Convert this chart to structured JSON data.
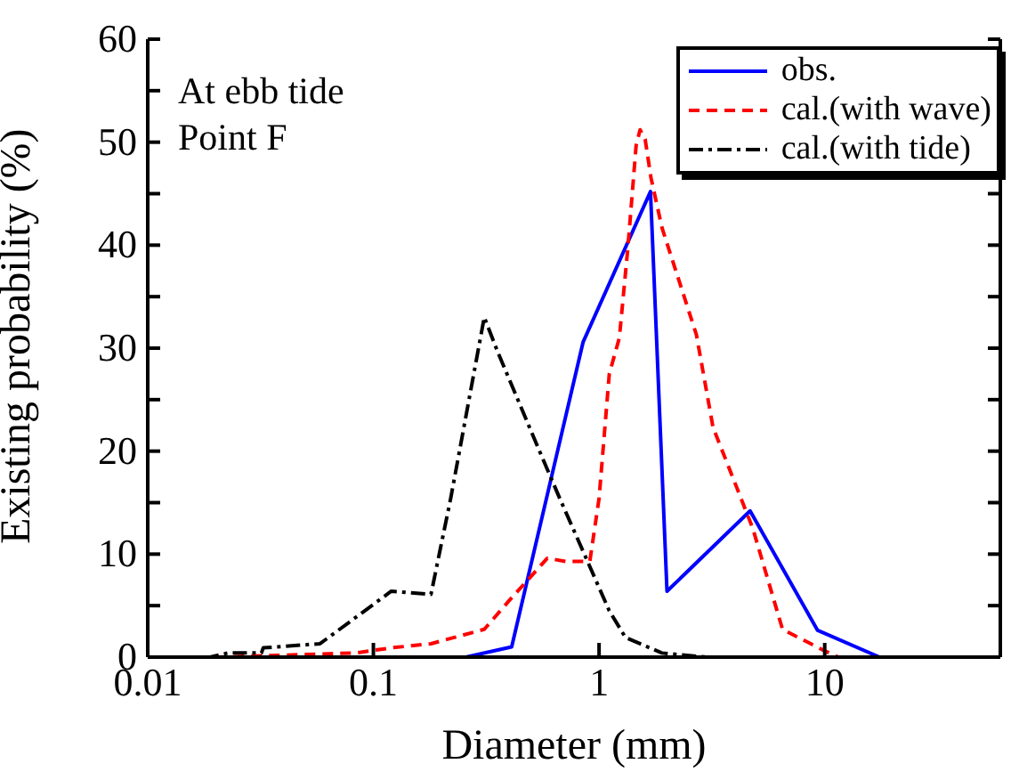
{
  "chart_data": {
    "type": "line",
    "xlabel": "Diameter (mm)",
    "ylabel": "Existing probability (%)",
    "log": "x",
    "xlim": [
      0.01,
      60
    ],
    "xticks": [
      0.01,
      0.1,
      1,
      10
    ],
    "ylim": [
      0,
      60
    ],
    "yticks": [
      0,
      {
        "value": 5,
        "label": null
      },
      10,
      {
        "value": 15,
        "label": null
      },
      20,
      {
        "value": 25,
        "label": null
      },
      30,
      {
        "value": 35,
        "label": null
      },
      40,
      {
        "value": 45,
        "label": null
      },
      50,
      {
        "value": 55,
        "label": null
      },
      60
    ],
    "legend": "top right",
    "grid": false,
    "marker": "none",
    "annotations": [
      "At ebb tide",
      "Point F"
    ],
    "series": [
      {
        "name": "obs.",
        "color": "#0000ff",
        "line_style": "solid",
        "x": [
          0.083,
          0.257,
          0.41,
          0.85,
          1.69,
          2.0,
          4.67,
          9.3,
          17.5,
          60
        ],
        "values": [
          0,
          0,
          1,
          30.6,
          45.2,
          6.4,
          14.2,
          2.6,
          0,
          0
        ]
      },
      {
        "name": "cal.(with wave)",
        "color": "#ff0000",
        "line_style": "dashed",
        "x": [
          0.02,
          0.083,
          0.12,
          0.18,
          0.31,
          0.4,
          0.59,
          0.71,
          0.91,
          1.0,
          1.11,
          1.23,
          1.34,
          1.46,
          1.52,
          1.6,
          1.7,
          1.9,
          2.7,
          3.2,
          3.97,
          4.8,
          6.5,
          9.8,
          11.5
        ],
        "values": [
          0,
          0.4,
          0.9,
          1.3,
          2.7,
          5.5,
          9.6,
          9.3,
          9.3,
          15.4,
          27.5,
          31,
          39.6,
          49.7,
          51.2,
          50.3,
          46.5,
          41.7,
          31.3,
          22.3,
          17.1,
          12.5,
          2.7,
          0.7,
          0
        ]
      },
      {
        "name": "cal.(with tide)",
        "color": "#000000",
        "line_style": "dashdot",
        "x": [
          0.01,
          0.0189,
          0.0226,
          0.0319,
          0.0325,
          0.058,
          0.12,
          0.18,
          0.22,
          0.31,
          0.356,
          0.54,
          0.67,
          1.11,
          1.31,
          1.9,
          3,
          10
        ],
        "values": [
          0,
          0,
          0.4,
          0.4,
          0.9,
          1.3,
          6.4,
          6.1,
          15.4,
          33,
          29.6,
          20.2,
          15.4,
          4.5,
          1.9,
          0.4,
          0,
          0
        ]
      }
    ]
  }
}
